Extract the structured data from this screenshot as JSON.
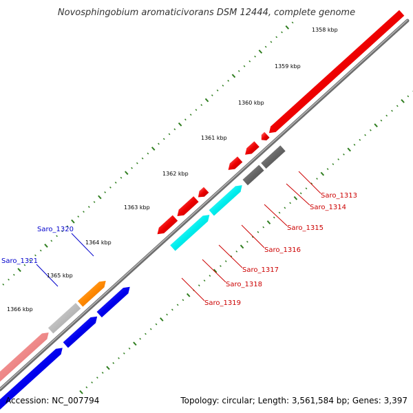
{
  "title": "Novosphingobium aromaticivorans DSM 12444, complete genome",
  "footer": {
    "accession": "Accession: NC_007794",
    "summary": "Topology: circular; Length: 3,561,584 bp; Genes: 3,397"
  },
  "colors": {
    "backbone": "#8c8c8c",
    "tick": "#2e7d1e",
    "red_gene": "#ee0000",
    "blue_gene": "#0000ee",
    "cyan_gene": "#00eeee",
    "gray_gene": "#666666",
    "light_gray_gene": "#bbbbbb",
    "orange_gene": "#ff8800",
    "pink_gene": "#ee8888",
    "red_label": "#cc0000",
    "blue_label": "#0000cc"
  },
  "kbp_labels": [
    "1358 kbp",
    "1359 kbp",
    "1360 kbp",
    "1361 kbp",
    "1362 kbp",
    "1363 kbp",
    "1364 kbp",
    "1365 kbp",
    "1366 kbp"
  ],
  "gene_labels": [
    {
      "text": "Saro_1313",
      "color": "red"
    },
    {
      "text": "Saro_1314",
      "color": "red"
    },
    {
      "text": "Saro_1315",
      "color": "red"
    },
    {
      "text": "Saro_1316",
      "color": "red"
    },
    {
      "text": "Saro_1317",
      "color": "red"
    },
    {
      "text": "Saro_1318",
      "color": "red"
    },
    {
      "text": "Saro_1319",
      "color": "red"
    },
    {
      "text": "Saro_1320",
      "color": "blue"
    },
    {
      "text": "Saro_1321",
      "color": "blue"
    }
  ]
}
